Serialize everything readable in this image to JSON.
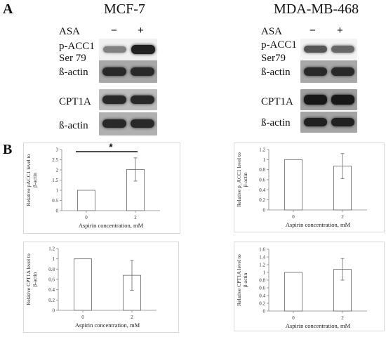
{
  "panel_a": {
    "letter": "A",
    "blots": [
      {
        "cell_line": "MCF-7",
        "treatment_label": "ASA",
        "lane_labels": [
          "−",
          "+"
        ],
        "rows": [
          {
            "label_line1": "p-ACC1",
            "label_line2": "Ser 79",
            "intensity": [
              0.35,
              0.9
            ]
          },
          {
            "label_line1": "ß-actin",
            "label_line2": "",
            "intensity": [
              0.85,
              0.85
            ]
          },
          {
            "label_line1": "CPT1A",
            "label_line2": "",
            "intensity": [
              0.85,
              0.85
            ]
          },
          {
            "label_line1": "ß-actin",
            "label_line2": "",
            "intensity": [
              0.85,
              0.85
            ]
          }
        ]
      },
      {
        "cell_line": "MDA-MB-468",
        "treatment_label": "ASA",
        "lane_labels": [
          "−",
          "+"
        ],
        "rows": [
          {
            "label_line1": "p-ACC1",
            "label_line2": "Ser79",
            "intensity": [
              0.6,
              0.5
            ]
          },
          {
            "label_line1": "ß-actin",
            "label_line2": "",
            "intensity": [
              0.85,
              0.85
            ]
          },
          {
            "label_line1": "CPT1A",
            "label_line2": "",
            "intensity": [
              0.95,
              0.95
            ]
          },
          {
            "label_line1": "ß-actin",
            "label_line2": "",
            "intensity": [
              0.9,
              0.9
            ]
          }
        ]
      }
    ]
  },
  "panel_b": {
    "letter": "B"
  },
  "chart_data": [
    {
      "type": "bar",
      "categories": [
        "0",
        "2"
      ],
      "values": [
        1,
        2.02
      ],
      "errors": [
        0,
        0.57
      ],
      "xlabel": "Aspirin concentration, mM",
      "ylabel_line1": "Relative pACC1 level to",
      "ylabel_line2": "β-actin",
      "ylim": [
        0,
        3
      ],
      "yticks": [
        "0",
        "0.5",
        "1",
        "1.5",
        "2",
        "2.5",
        "3"
      ],
      "significance": "*",
      "bar_color": "#ffffff"
    },
    {
      "type": "bar",
      "categories": [
        "0",
        "2"
      ],
      "values": [
        1,
        0.87
      ],
      "errors": [
        0,
        0.25
      ],
      "xlabel": "Aspirin concentration, mM",
      "ylabel_line1": "Relative p_ACC1 level to",
      "ylabel_line2": "β-actin",
      "ylim": [
        0,
        1.2
      ],
      "yticks": [
        "0",
        "0.2",
        "0.4",
        "0.6",
        "0.8",
        "1",
        "1.2"
      ],
      "significance": "",
      "bar_color": "#ffffff"
    },
    {
      "type": "bar",
      "categories": [
        "0",
        "2"
      ],
      "values": [
        1,
        0.68
      ],
      "errors": [
        0,
        0.29
      ],
      "xlabel": "Aspirin concentration, mM",
      "ylabel_line1": "Relative CPT1A level to",
      "ylabel_line2": "β-actin",
      "ylim": [
        0,
        1.2
      ],
      "yticks": [
        "0",
        "0.2",
        "0.4",
        "0.6",
        "0.8",
        "1",
        "1.2"
      ],
      "significance": "",
      "bar_color": "#ffffff"
    },
    {
      "type": "bar",
      "categories": [
        "0",
        "2"
      ],
      "values": [
        1,
        1.08
      ],
      "errors": [
        0,
        0.28
      ],
      "xlabel": "Aspirin concentration, mM",
      "ylabel_line1": "Relative CPT1A level to",
      "ylabel_line2": "β-actin",
      "ylim": [
        0,
        1.6
      ],
      "yticks": [
        "0",
        "0.2",
        "0.4",
        "0.6",
        "0.8",
        "1",
        "1.2",
        "1.4",
        "1.6"
      ],
      "significance": "",
      "bar_color": "#ffffff"
    }
  ]
}
